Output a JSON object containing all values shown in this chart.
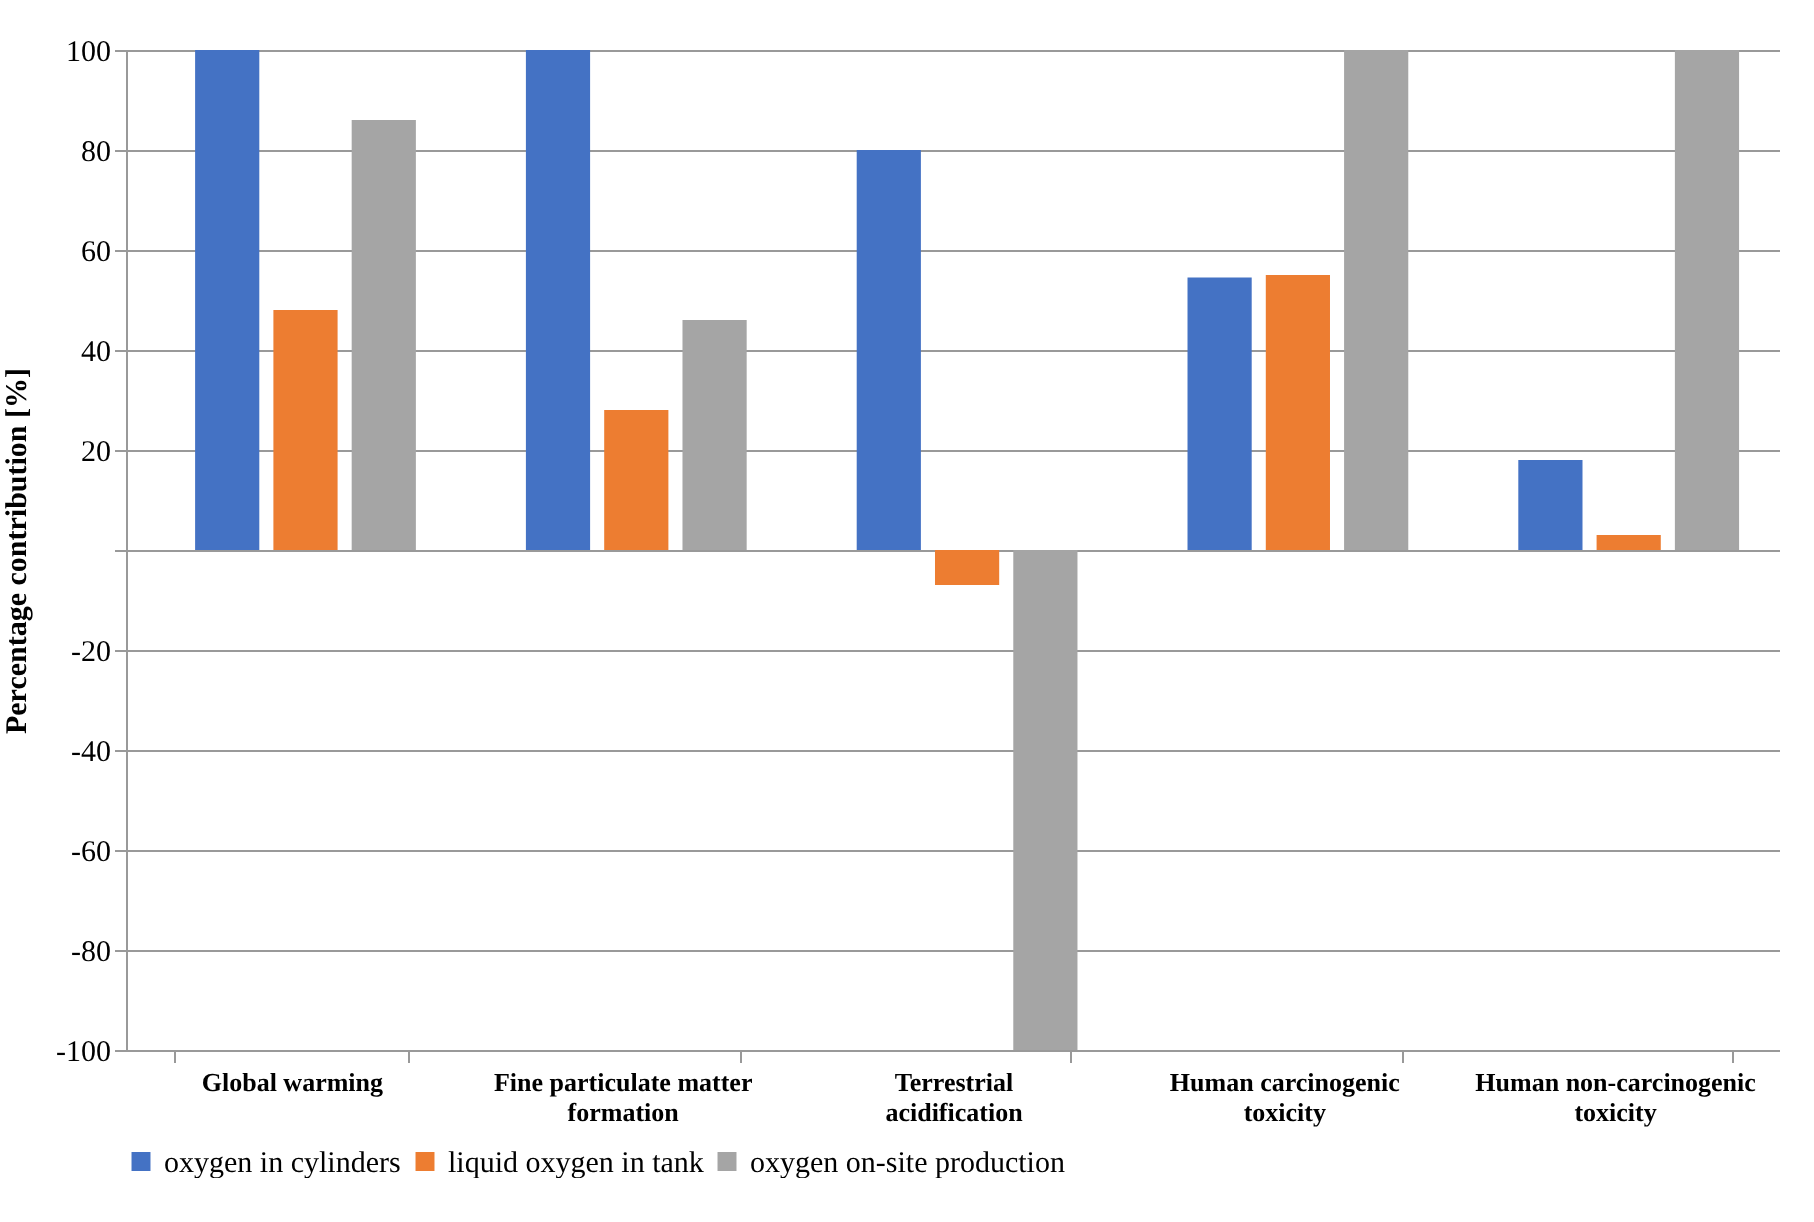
{
  "chart_data": {
    "type": "bar",
    "ylabel": "Percentage contribution [%]",
    "categories": [
      "Global warming",
      "Fine particulate matter formation",
      "Terrestrial acidification",
      "Human carcinogenic toxicity",
      "Human non-carcinogenic toxicity"
    ],
    "series": [
      {
        "name": "oxygen in cylinders",
        "color": "#4472c4",
        "values": [
          100,
          100,
          80,
          54.5,
          18
        ]
      },
      {
        "name": "liquid oxygen in tank",
        "color": "#ed7d31",
        "values": [
          48,
          28,
          -7,
          55,
          3
        ]
      },
      {
        "name": "oxygen on-site production",
        "color": "#a5a5a5",
        "values": [
          86,
          46,
          -100,
          100,
          100
        ]
      }
    ],
    "ylim": [
      -100,
      100
    ],
    "yticks": [
      -100,
      -80,
      -60,
      -40,
      -20,
      {
        "value": 0,
        "label": null
      },
      20,
      40,
      60,
      80,
      100
    ],
    "grid": "y",
    "legend": "bottom"
  }
}
